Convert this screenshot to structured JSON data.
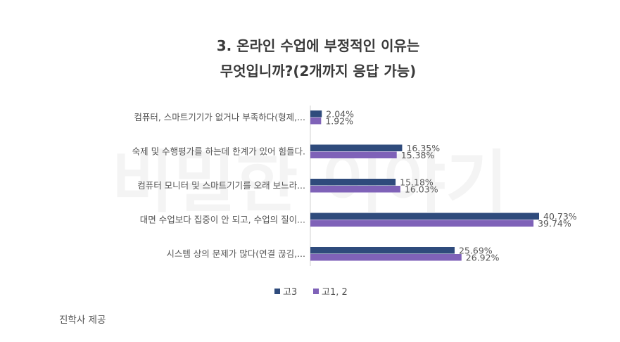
{
  "chart_data": {
    "type": "bar",
    "orientation": "horizontal",
    "title": [
      "3. 온라인 수업에 부정적인 이유는",
      "무엇입니까?(2개까지 응답 가능)"
    ],
    "categories": [
      "컴퓨터, 스마트기기가 없거나 부족하다(형제,...",
      "숙제 및 수행평가를 하는데 한계가 있어 힘들다.",
      "컴퓨터 모니터 및 스마트기기를 오래 보느라...",
      "대면 수업보다 집중이 안 되고, 수업의 질이...",
      "시스템 상의 문제가 많다(연결 끊김,..."
    ],
    "series": [
      {
        "name": "고3",
        "color": "#2f4b7c",
        "values": [
          2.04,
          16.35,
          15.18,
          40.73,
          25.69
        ],
        "labels": [
          "2.04%",
          "16.35%",
          "15.18%",
          "40.73%",
          "25.69%"
        ]
      },
      {
        "name": "고1, 2",
        "color": "#7f62b8",
        "values": [
          1.92,
          15.38,
          16.03,
          39.74,
          26.92
        ],
        "labels": [
          "1.92%",
          "15.38%",
          "16.03%",
          "39.74%",
          "26.92%"
        ]
      }
    ],
    "xlim": [
      0,
      40.73
    ],
    "grid": false,
    "legend_position": "bottom"
  },
  "watermark": "비밀한 이야기",
  "source": "진학사 제공"
}
